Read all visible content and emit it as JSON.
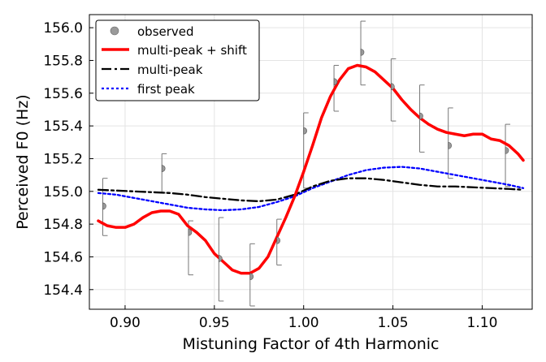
{
  "chart_data": {
    "type": "line",
    "title": "",
    "xlabel": "Mistuning Factor of 4th Harmonic",
    "ylabel": "Perceived F0 (Hz)",
    "xlim": [
      0.88,
      1.128
    ],
    "ylim": [
      154.28,
      156.08
    ],
    "xticks": [
      0.9,
      0.95,
      1.0,
      1.05,
      1.1
    ],
    "xtick_labels": [
      "0.90",
      "0.95",
      "1.00",
      "1.05",
      "1.10"
    ],
    "yticks": [
      154.4,
      154.6,
      154.8,
      155.0,
      155.2,
      155.4,
      155.6,
      155.8,
      156.0
    ],
    "ytick_labels": [
      "154.4",
      "154.6",
      "154.8",
      "155.0",
      "155.2",
      "155.4",
      "155.6",
      "155.8",
      "156.0"
    ],
    "grid": true,
    "legend_position": "top-left",
    "observed": {
      "name": "observed",
      "color": "#9a9a9a",
      "points": [
        {
          "x": 0.8875,
          "y": 154.91,
          "lo": 154.73,
          "hi": 155.08
        },
        {
          "x": 0.9206,
          "y": 155.14,
          "lo": 154.99,
          "hi": 155.23
        },
        {
          "x": 0.9355,
          "y": 154.75,
          "lo": 154.49,
          "hi": 154.82
        },
        {
          "x": 0.9525,
          "y": 154.59,
          "lo": 154.33,
          "hi": 154.84
        },
        {
          "x": 0.97,
          "y": 154.48,
          "lo": 154.3,
          "hi": 154.68
        },
        {
          "x": 0.985,
          "y": 154.7,
          "lo": 154.55,
          "hi": 154.83
        },
        {
          "x": 1.0,
          "y": 155.37,
          "lo": 155.02,
          "hi": 155.48
        },
        {
          "x": 1.017,
          "y": 155.67,
          "lo": 155.49,
          "hi": 155.77
        },
        {
          "x": 1.032,
          "y": 155.85,
          "lo": 155.65,
          "hi": 156.04
        },
        {
          "x": 1.049,
          "y": 155.64,
          "lo": 155.43,
          "hi": 155.81
        },
        {
          "x": 1.065,
          "y": 155.46,
          "lo": 155.24,
          "hi": 155.65
        },
        {
          "x": 1.081,
          "y": 155.28,
          "lo": 155.08,
          "hi": 155.51
        },
        {
          "x": 1.113,
          "y": 155.25,
          "lo": 155.03,
          "hi": 155.41
        }
      ]
    },
    "series": [
      {
        "name": "multi-peak + shift",
        "color": "#ff0000",
        "style": "solid",
        "x": [
          0.885,
          0.89,
          0.895,
          0.9,
          0.905,
          0.91,
          0.915,
          0.92,
          0.925,
          0.93,
          0.935,
          0.94,
          0.945,
          0.95,
          0.955,
          0.96,
          0.965,
          0.97,
          0.975,
          0.98,
          0.985,
          0.99,
          0.995,
          1.0,
          1.005,
          1.01,
          1.015,
          1.02,
          1.025,
          1.03,
          1.035,
          1.04,
          1.045,
          1.05,
          1.055,
          1.06,
          1.065,
          1.07,
          1.075,
          1.08,
          1.085,
          1.09,
          1.095,
          1.1,
          1.105,
          1.11,
          1.115,
          1.12,
          1.123
        ],
        "y": [
          154.82,
          154.79,
          154.78,
          154.78,
          154.8,
          154.84,
          154.87,
          154.88,
          154.88,
          154.86,
          154.79,
          154.75,
          154.7,
          154.62,
          154.57,
          154.52,
          154.5,
          154.5,
          154.53,
          154.6,
          154.72,
          154.84,
          154.97,
          155.12,
          155.28,
          155.45,
          155.58,
          155.68,
          155.75,
          155.77,
          155.76,
          155.73,
          155.68,
          155.63,
          155.56,
          155.5,
          155.45,
          155.41,
          155.38,
          155.36,
          155.35,
          155.34,
          155.35,
          155.35,
          155.32,
          155.31,
          155.28,
          155.23,
          155.19
        ]
      },
      {
        "name": "multi-peak",
        "color": "#000000",
        "style": "dashdot",
        "x": [
          0.885,
          0.895,
          0.905,
          0.915,
          0.925,
          0.935,
          0.945,
          0.955,
          0.965,
          0.975,
          0.985,
          0.995,
          1.005,
          1.015,
          1.025,
          1.035,
          1.045,
          1.055,
          1.065,
          1.075,
          1.085,
          1.095,
          1.105,
          1.115,
          1.123
        ],
        "y": [
          155.01,
          155.005,
          155.0,
          154.995,
          154.99,
          154.98,
          154.965,
          154.955,
          154.945,
          154.94,
          154.95,
          154.98,
          155.03,
          155.065,
          155.08,
          155.08,
          155.07,
          155.055,
          155.04,
          155.03,
          155.03,
          155.025,
          155.02,
          155.015,
          155.01
        ]
      },
      {
        "name": "first peak",
        "color": "#0000ff",
        "style": "dotted",
        "x": [
          0.885,
          0.895,
          0.905,
          0.915,
          0.925,
          0.935,
          0.945,
          0.955,
          0.965,
          0.975,
          0.985,
          0.995,
          1.005,
          1.015,
          1.025,
          1.035,
          1.045,
          1.055,
          1.065,
          1.075,
          1.085,
          1.095,
          1.105,
          1.115,
          1.123
        ],
        "y": [
          154.99,
          154.98,
          154.96,
          154.94,
          154.92,
          154.9,
          154.89,
          154.885,
          154.89,
          154.905,
          154.935,
          154.97,
          155.02,
          155.06,
          155.1,
          155.13,
          155.145,
          155.15,
          155.14,
          155.12,
          155.1,
          155.08,
          155.06,
          155.04,
          155.02
        ]
      }
    ]
  }
}
